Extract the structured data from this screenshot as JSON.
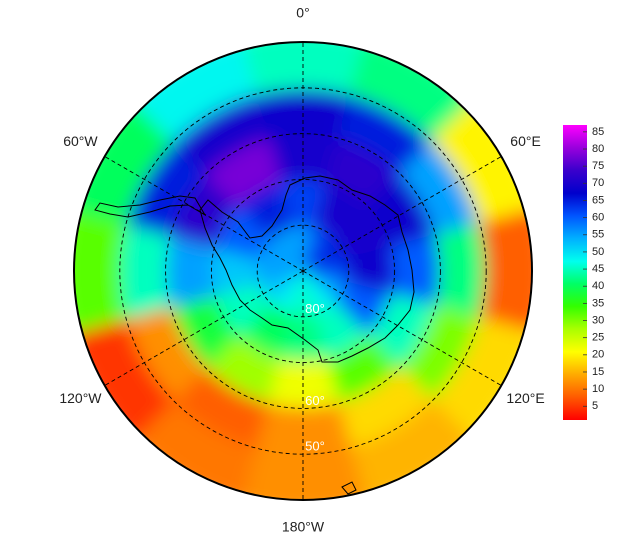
{
  "chart_data": {
    "type": "polar_heatmap",
    "rlim": [
      90,
      40
    ],
    "lat_edges": [
      90,
      80,
      70,
      60,
      50,
      40
    ],
    "lon_centers": [
      0,
      30,
      60,
      90,
      120,
      150,
      180,
      210,
      240,
      270,
      300,
      330
    ],
    "values": [
      [
        55,
        62,
        65,
        62,
        55,
        48,
        45,
        48,
        52,
        55,
        55,
        55
      ],
      [
        62,
        70,
        70,
        68,
        60,
        45,
        42,
        40,
        45,
        52,
        60,
        65
      ],
      [
        70,
        72,
        68,
        60,
        45,
        32,
        22,
        28,
        38,
        55,
        72,
        78
      ],
      [
        68,
        65,
        55,
        42,
        30,
        18,
        12,
        8,
        12,
        45,
        65,
        70
      ],
      [
        45,
        42,
        20,
        8,
        18,
        15,
        12,
        10,
        5,
        32,
        40,
        48
      ]
    ],
    "lat_grid": [
      80,
      70,
      60,
      50
    ],
    "lat_labels": [
      {
        "value": 80,
        "label": "80°"
      },
      {
        "value": 60,
        "label": "60°"
      },
      {
        "value": 50,
        "label": "50°"
      }
    ],
    "lon_ticks": [
      {
        "value": 0,
        "label": "0°"
      },
      {
        "value": 60,
        "label": "60°E"
      },
      {
        "value": 120,
        "label": "120°E"
      },
      {
        "value": 180,
        "label": "180°W"
      },
      {
        "value": 240,
        "label": "120°W"
      },
      {
        "value": 300,
        "label": "60°W"
      }
    ],
    "clim": [
      1,
      87
    ],
    "colorbar_ticks": [
      5,
      10,
      15,
      20,
      25,
      30,
      35,
      40,
      45,
      50,
      55,
      60,
      65,
      70,
      75,
      80,
      85
    ],
    "colorscale": [
      "#ff0000",
      "#ff5a00",
      "#ffaa00",
      "#ffff00",
      "#aaff00",
      "#33ff00",
      "#00ff66",
      "#00ffee",
      "#00b0ff",
      "#0055ff",
      "#0000cc",
      "#3a00cc",
      "#9900dd",
      "#ff00ff"
    ],
    "grid": true
  }
}
